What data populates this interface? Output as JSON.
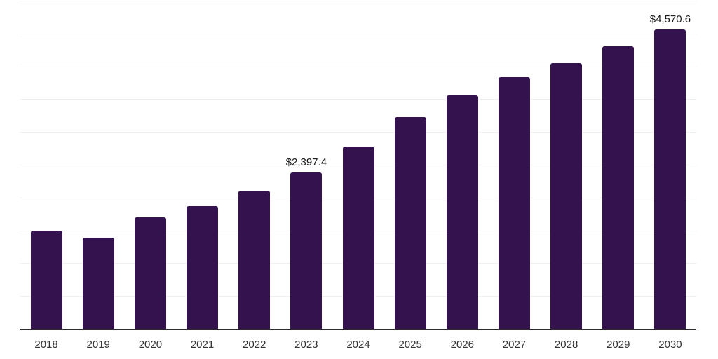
{
  "chart_data": {
    "type": "bar",
    "title": "",
    "xlabel": "",
    "ylabel": "",
    "categories": [
      "2018",
      "2019",
      "2020",
      "2021",
      "2022",
      "2023",
      "2024",
      "2025",
      "2026",
      "2027",
      "2028",
      "2029",
      "2030"
    ],
    "values": [
      1505,
      1400,
      1710,
      1880,
      2115,
      2397.4,
      2790,
      3240,
      3570,
      3845,
      4060,
      4315,
      4570.6
    ],
    "data_labels": [
      "",
      "",
      "",
      "",
      "",
      "$2,397.4",
      "",
      "",
      "",
      "",
      "",
      "",
      "$4,570.6"
    ],
    "ylim": [
      0,
      5000
    ],
    "gridline_step": 500,
    "grid": true,
    "legend": false,
    "colors": {
      "bar": "#33124E",
      "gridline": "#F0F0F0",
      "axis_line": "#2B2B2B",
      "value_label": "#1A1A1A",
      "tick_label": "#333333",
      "background": "#FFFFFF"
    }
  }
}
